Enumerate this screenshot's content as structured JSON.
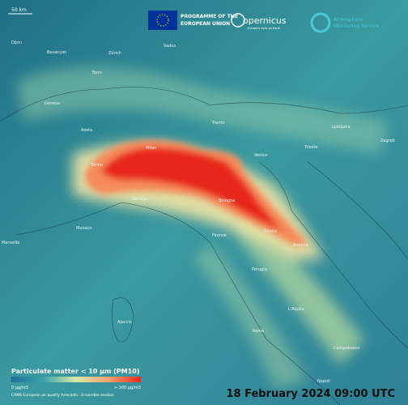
{
  "scale_bar": "50 km",
  "header": {
    "eu_programme": [
      "PROGRAMME OF THE",
      "EUROPEAN UNION"
    ],
    "copernicus": "opernicus",
    "copernicus_tagline": "Europe's eyes on Earth",
    "service": [
      "Atmosphere",
      "Monitoring Service"
    ]
  },
  "cities": [
    "Dijon",
    "Besançon",
    "Zürich",
    "Vaduz",
    "Bern",
    "Geneva",
    "Aosta",
    "Trento",
    "Ljubljana",
    "Zagreb",
    "Trieste",
    "Milan",
    "Torino",
    "Venice",
    "Genova",
    "Bologna",
    "Monaco",
    "Firenze",
    "Rimini",
    "Ancona",
    "Marseille",
    "Perugia",
    "Ajaccio",
    "L'Aquila",
    "Rome",
    "Campobasso",
    "Napoli"
  ],
  "legend": {
    "title": "Particulate matter < 10 µm (PM10)",
    "min_label": "0 µg/m3",
    "max_label": "> 100 µg/m3",
    "source": "CAMS European air quality forecasts - Ensemble median"
  },
  "timestamp": "18 February 2024 09:00 UTC"
}
